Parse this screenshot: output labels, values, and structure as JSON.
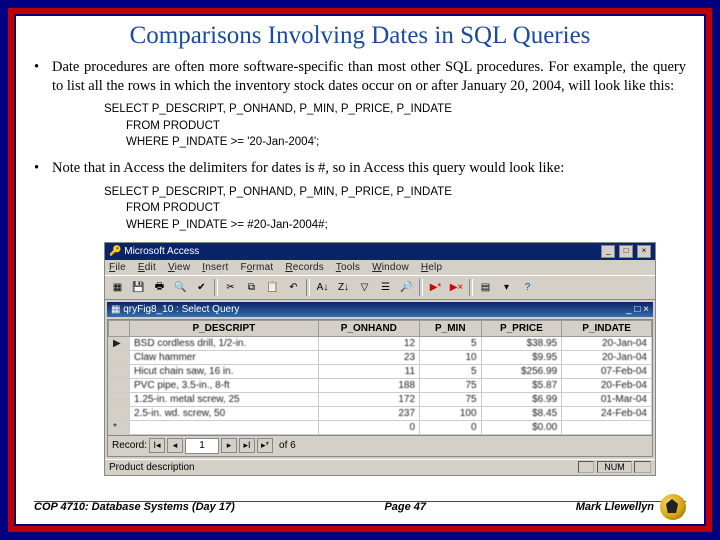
{
  "title": "Comparisons Involving Dates in SQL Queries",
  "bullets": [
    "Date procedures are often more software-specific than most other SQL procedures. For example, the query to list all the rows in which the inventory stock dates occur on or after January 20, 2004, will look like this:",
    "Note that in Access the delimiters for dates is #, so in Access this query would look like:"
  ],
  "code1": {
    "l1": "SELECT  P_DESCRIPT, P_ONHAND, P_MIN, P_PRICE, P_INDATE",
    "l2": "FROM PRODUCT",
    "l3": "WHERE P_INDATE >= '20-Jan-2004';"
  },
  "code2": {
    "l1": "SELECT  P_DESCRIPT, P_ONHAND, P_MIN, P_PRICE, P_INDATE",
    "l2": "FROM PRODUCT",
    "l3": "WHERE P_INDATE >= #20-Jan-2004#;"
  },
  "access": {
    "app_title": "Microsoft Access",
    "child_title": "qryFig8_10 : Select Query",
    "menus": [
      "File",
      "Edit",
      "View",
      "Insert",
      "Format",
      "Records",
      "Tools",
      "Window",
      "Help"
    ],
    "columns": [
      "",
      "P_DESCRIPT",
      "P_ONHAND",
      "P_MIN",
      "P_PRICE",
      "P_INDATE"
    ],
    "rows": [
      [
        "▶",
        "BSD cordless drill, 1/2-in.",
        "12",
        "5",
        "$38.95",
        "20-Jan-04"
      ],
      [
        "",
        "Claw hammer",
        "23",
        "10",
        "$9.95",
        "20-Jan-04"
      ],
      [
        "",
        "Hicut chain saw, 16 in.",
        "11",
        "5",
        "$256.99",
        "07-Feb-04"
      ],
      [
        "",
        "PVC pipe, 3.5-in., 8-ft",
        "188",
        "75",
        "$5.87",
        "20-Feb-04"
      ],
      [
        "",
        "1.25-in. metal screw, 25",
        "172",
        "75",
        "$6.99",
        "01-Mar-04"
      ],
      [
        "",
        "2.5-in. wd. screw, 50",
        "237",
        "100",
        "$8.45",
        "24-Feb-04"
      ],
      [
        "*",
        "",
        "0",
        "0",
        "$0.00",
        ""
      ]
    ],
    "recnav_label": "Record:",
    "recnav_value": "1",
    "recnav_of": "of  6",
    "status_left": "Product description",
    "status_num": "NUM"
  },
  "footer": {
    "left": "COP 4710: Database Systems  (Day 17)",
    "center": "Page 47",
    "right": "Mark Llewellyn"
  },
  "colors": {
    "outer_border": "#000080",
    "mid_border": "#c00000",
    "title_color": "#1a4ba0",
    "win_titlebar": "#0a246a",
    "ui_face": "#d4d0c8"
  }
}
